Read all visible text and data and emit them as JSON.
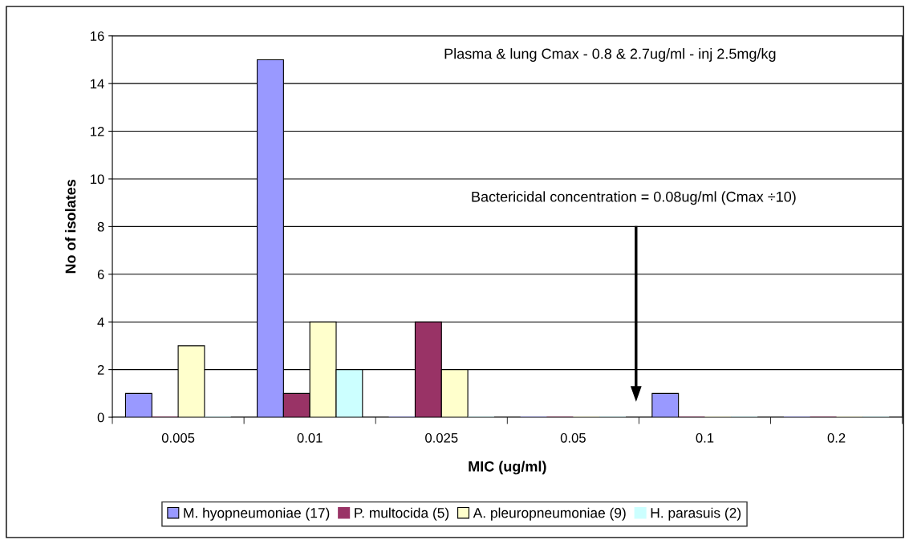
{
  "chart_data": {
    "type": "bar",
    "xlabel": "MIC (ug/ml)",
    "ylabel": "No of isolates",
    "categories": [
      "0.005",
      "0.01",
      "0.025",
      "0.05",
      "0.1",
      "0.2"
    ],
    "series": [
      {
        "name": "M. hyopneumoniae (17)",
        "color": "#9999ff",
        "values": [
          1,
          15,
          0,
          0,
          1,
          0
        ]
      },
      {
        "name": "P. multocida (5)",
        "color": "#993366",
        "values": [
          0,
          1,
          4,
          0,
          0,
          0
        ]
      },
      {
        "name": "A. pleuropneumoniae (9)",
        "color": "#ffffcc",
        "values": [
          3,
          4,
          2,
          0,
          0,
          0
        ]
      },
      {
        "name": "H. parasuis (2)",
        "color": "#ccffff",
        "values": [
          0,
          2,
          0,
          0,
          0,
          0
        ]
      }
    ],
    "ylim": [
      0,
      16
    ],
    "yticks": [
      0,
      2,
      4,
      6,
      8,
      10,
      12,
      14,
      16
    ],
    "grid": "y",
    "legend": "bottom",
    "annotations": [
      "Plasma & lung Cmax - 0.8 & 2.7ug/ml - inj 2.5mg/kg",
      "Bactericidal concentration = 0.08ug/ml (Cmax ÷10)"
    ]
  }
}
